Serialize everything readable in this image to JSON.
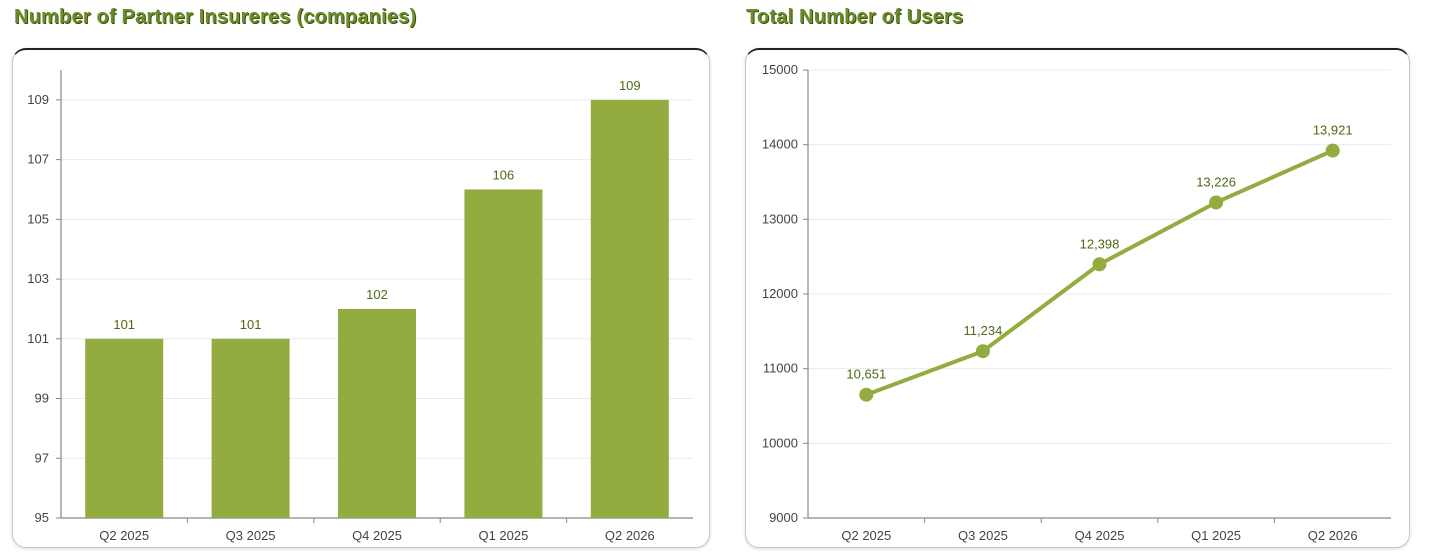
{
  "titles": {
    "left": "Number of Partner Insureres  (companies)",
    "right": "Total Number of Users"
  },
  "colors": {
    "series": "#93ac3f",
    "title": "#6e8c2a",
    "label": "#4e6a12"
  },
  "chart_data": [
    {
      "type": "bar",
      "title": "Number of Partner Insureres  (companies)",
      "categories": [
        "Q2 2025",
        "Q3 2025",
        "Q4 2025",
        "Q1 2025",
        "Q2 2026"
      ],
      "values": [
        101,
        101,
        102,
        106,
        109
      ],
      "data_labels": [
        "101",
        "101",
        "102",
        "106",
        "109"
      ],
      "ylim": [
        95,
        110
      ],
      "yticks": [
        95,
        97,
        99,
        101,
        103,
        105,
        107,
        109
      ],
      "grid": true,
      "legend": "none"
    },
    {
      "type": "line",
      "title": "Total Number of Users",
      "categories": [
        "Q2 2025",
        "Q3 2025",
        "Q4 2025",
        "Q1 2025",
        "Q2 2026"
      ],
      "values": [
        10651,
        11234,
        12398,
        13226,
        13921
      ],
      "data_labels": [
        "10,651",
        "11,234",
        "12,398",
        "13,226",
        "13,921"
      ],
      "ylim": [
        9000,
        15000
      ],
      "yticks": [
        9000,
        10000,
        11000,
        12000,
        13000,
        14000,
        15000
      ],
      "grid": true,
      "legend": "none"
    }
  ]
}
